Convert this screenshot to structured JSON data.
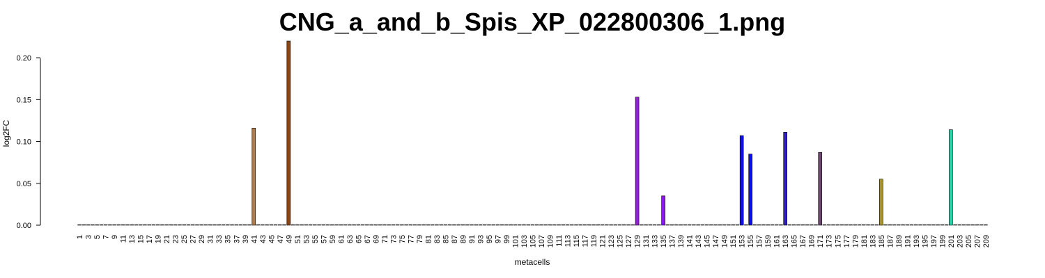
{
  "chart_data": {
    "type": "bar",
    "title": "CNG_a_and_b_Spis_XP_022800306_1.png",
    "xlabel": "metacells",
    "ylabel": "log2FC",
    "ylim": [
      0,
      0.22
    ],
    "yticks": [
      0.0,
      0.05,
      0.1,
      0.15,
      0.2
    ],
    "ytick_labels": [
      "0.00",
      "0.05",
      "0.10",
      "0.15",
      "0.20"
    ],
    "n_categories": 209,
    "x_tick_step": 2,
    "grid": false,
    "legend": "none",
    "default_color": "#ffffff",
    "bars": [
      {
        "metacell": 41,
        "value": 0.116,
        "color": "#B07A4A"
      },
      {
        "metacell": 49,
        "value": 0.22,
        "color": "#8B4513"
      },
      {
        "metacell": 129,
        "value": 0.153,
        "color": "#9420D6"
      },
      {
        "metacell": 135,
        "value": 0.035,
        "color": "#8A1AF0"
      },
      {
        "metacell": 153,
        "value": 0.107,
        "color": "#1010E8"
      },
      {
        "metacell": 155,
        "value": 0.085,
        "color": "#1010E8"
      },
      {
        "metacell": 163,
        "value": 0.111,
        "color": "#3020C0"
      },
      {
        "metacell": 171,
        "value": 0.087,
        "color": "#6B4A6E"
      },
      {
        "metacell": 185,
        "value": 0.055,
        "color": "#A8922A"
      },
      {
        "metacell": 201,
        "value": 0.114,
        "color": "#2AD4A8"
      }
    ]
  }
}
